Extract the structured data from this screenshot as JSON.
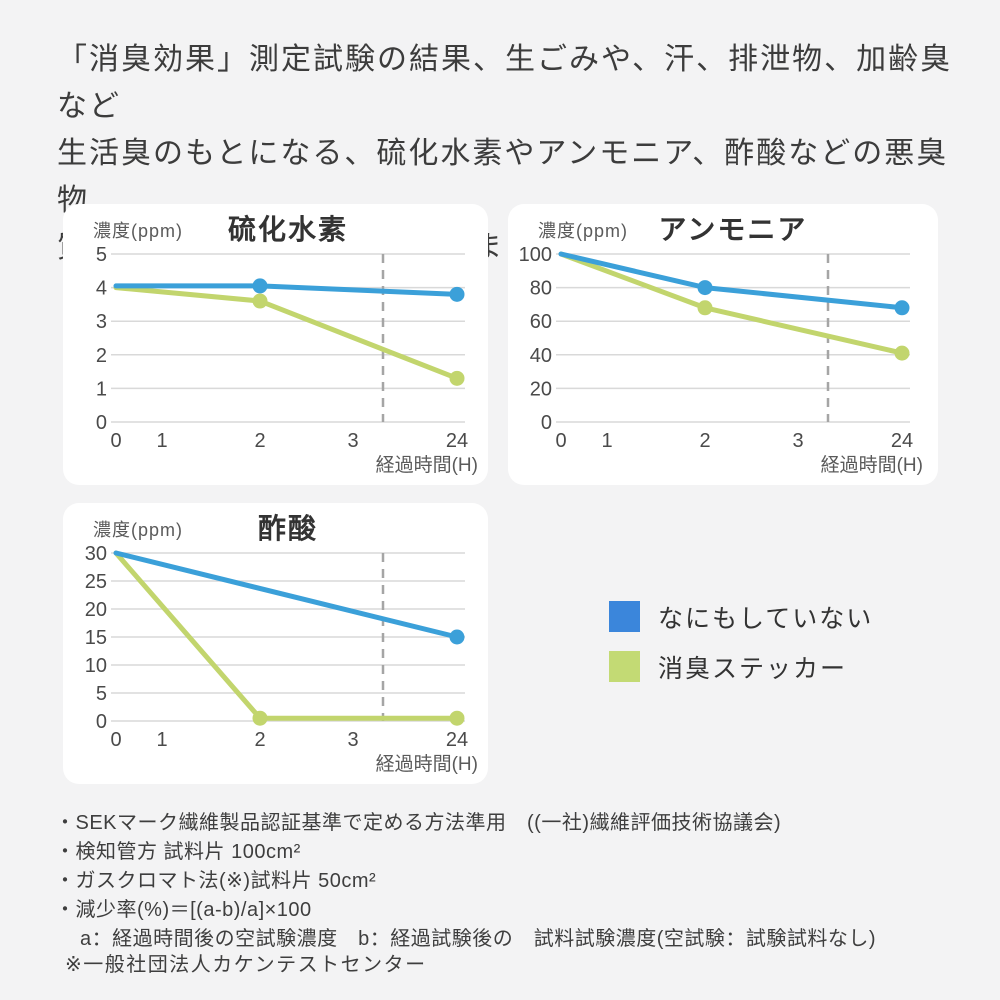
{
  "header": {
    "lines": [
      "「消臭効果」測定試験の結果、生ごみや、汗、排泄物、加齢臭など",
      "生活臭のもとになる、硫化水素やアンモニア、酢酸などの悪臭物",
      "質に対して消臭効果を発揮しました。"
    ]
  },
  "chart_data": [
    {
      "type": "line",
      "title": "硫化水素",
      "ylabel": "濃度(ppm)",
      "xlabel": "経過時間(H)",
      "xticks": [
        "0",
        "1",
        "2",
        "3",
        "24"
      ],
      "x_hours": [
        0,
        1,
        2,
        3,
        24
      ],
      "ylim": [
        0,
        5
      ],
      "yticks": [
        0,
        1,
        2,
        3,
        4,
        5
      ],
      "grid": true,
      "dashed_guide": true,
      "series": [
        {
          "key": "untreated",
          "name": "なにもしていない",
          "color": "#3ba0d9",
          "x": [
            0,
            2,
            24
          ],
          "values": [
            4.05,
            4.05,
            3.8
          ],
          "markers_at": [
            2,
            24
          ]
        },
        {
          "key": "deodorant-sticker",
          "name": "消臭ステッカー",
          "color": "#c2d56d",
          "x": [
            0,
            2,
            24
          ],
          "values": [
            4.0,
            3.6,
            1.3
          ],
          "markers_at": [
            2,
            24
          ]
        }
      ]
    },
    {
      "type": "line",
      "title": "アンモニア",
      "ylabel": "濃度(ppm)",
      "xlabel": "経過時間(H)",
      "xticks": [
        "0",
        "1",
        "2",
        "3",
        "24"
      ],
      "x_hours": [
        0,
        1,
        2,
        3,
        24
      ],
      "ylim": [
        0,
        100
      ],
      "yticks": [
        0,
        20,
        40,
        60,
        80,
        100
      ],
      "grid": true,
      "dashed_guide": true,
      "series": [
        {
          "key": "untreated",
          "name": "なにもしていない",
          "color": "#3ba0d9",
          "x": [
            0,
            2,
            24
          ],
          "values": [
            100,
            80,
            68
          ],
          "markers_at": [
            2,
            24
          ]
        },
        {
          "key": "deodorant-sticker",
          "name": "消臭ステッカー",
          "color": "#c2d56d",
          "x": [
            0,
            2,
            24
          ],
          "values": [
            100,
            68,
            41
          ],
          "markers_at": [
            2,
            24
          ]
        }
      ]
    },
    {
      "type": "line",
      "title": "酢酸",
      "ylabel": "濃度(ppm)",
      "xlabel": "経過時間(H)",
      "xticks": [
        "0",
        "1",
        "2",
        "3",
        "24"
      ],
      "x_hours": [
        0,
        1,
        2,
        3,
        24
      ],
      "ylim": [
        0,
        30
      ],
      "yticks": [
        0,
        5,
        10,
        15,
        20,
        25,
        30
      ],
      "grid": true,
      "dashed_guide": true,
      "series": [
        {
          "key": "untreated",
          "name": "なにもしていない",
          "color": "#3ba0d9",
          "x": [
            0,
            24
          ],
          "values": [
            30,
            15
          ],
          "markers_at": [
            24
          ]
        },
        {
          "key": "deodorant-sticker",
          "name": "消臭ステッカー",
          "color": "#c2d56d",
          "x": [
            0,
            2,
            24
          ],
          "values": [
            30,
            0.5,
            0.5
          ],
          "markers_at": [
            2,
            24
          ]
        }
      ]
    }
  ],
  "legend": {
    "items": [
      {
        "key": "untreated",
        "label": "なにもしていない",
        "color": "#3b86db"
      },
      {
        "key": "deodorant-sticker",
        "label": "消臭ステッカー",
        "color": "#c3da74"
      }
    ]
  },
  "notes": {
    "lines": [
      "・SEKマーク繊維製品認証基準で定める方法準用　((一社)繊維評価技術協議会)",
      "・検知管方 試料片 100cm²",
      "・ガスクロマト法(※)試料片 50cm²",
      "・減少率(%)＝[(a-b)/a]×100",
      "a：経過時間後の空試験濃度　b：経過試験後の　試料試験濃度(空試験：試験試料なし)"
    ],
    "footnote": "※一般社団法人カケンテストセンター"
  },
  "colors": {
    "background": "#f3f3f4",
    "panel": "#ffffff",
    "grid": "#d9d9d9",
    "dashed_guide": "#a5a5a5",
    "tick_text": "#4a4a4a",
    "axis_label_text": "#5a5a5a",
    "title_text": "#333333",
    "body_text": "#3c3c3c"
  }
}
